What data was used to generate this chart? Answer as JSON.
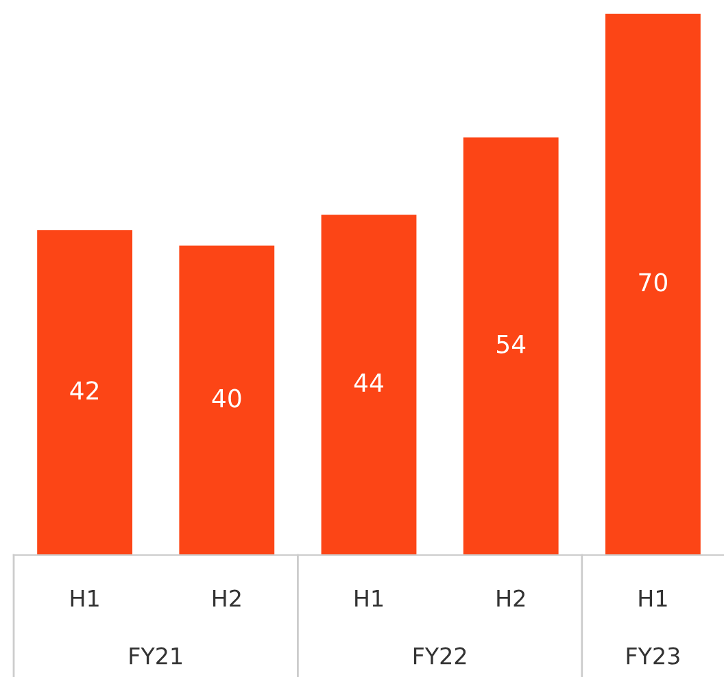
{
  "chart_data": {
    "type": "bar",
    "categories": [
      "H1",
      "H2",
      "H1",
      "H2",
      "H1"
    ],
    "values": [
      42,
      40,
      44,
      54,
      70
    ],
    "color": "#fc4516",
    "data_labels": true,
    "annotations": [
      "FY21",
      "FY22",
      "FY23"
    ],
    "grid": false,
    "legend": false
  }
}
